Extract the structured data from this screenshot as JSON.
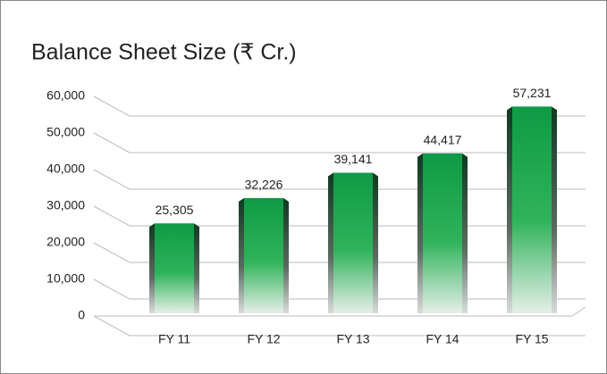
{
  "chart_data": {
    "type": "bar",
    "title": "Balance Sheet Size (₹ Cr.)",
    "categories": [
      "FY 11",
      "FY 12",
      "FY 13",
      "FY 14",
      "FY 15"
    ],
    "values": [
      25305,
      32226,
      39141,
      44417,
      57231
    ],
    "value_labels": [
      "25,305",
      "32,226",
      "39,141",
      "44,417",
      "57,231"
    ],
    "color": "#1a9b4a",
    "ylim": [
      0,
      60000
    ],
    "yticks": [
      0,
      {
        "value": 10000,
        "label": "10,000"
      },
      {
        "value": 20000,
        "label": "20,000"
      },
      {
        "value": 30000,
        "label": "30,000"
      },
      {
        "value": 40000,
        "label": "40,000"
      },
      {
        "value": 50000,
        "label": "50,000"
      },
      {
        "value": 60000,
        "label": "60,000"
      }
    ],
    "grid": true
  }
}
